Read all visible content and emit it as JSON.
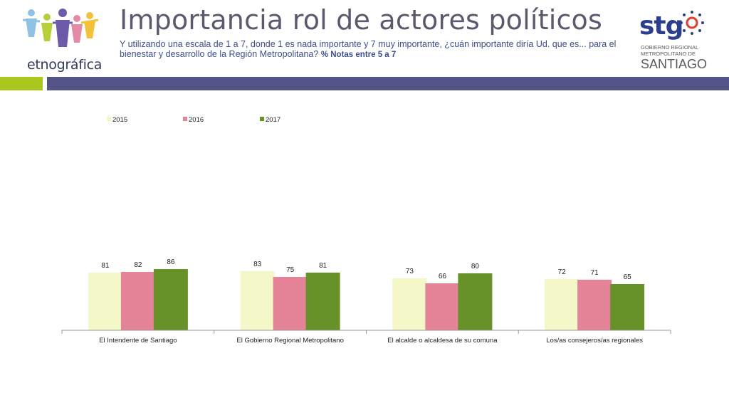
{
  "header": {
    "title": "Importancia rol de actores políticos",
    "subtitle": "Y utilizando una escala de 1 a 7, donde 1 es nada importante y 7 muy importante, ¿cuán importante diría Ud. que es... para el bienestar y desarrollo de la Región Metropolitana?",
    "note": "% Notas entre 5 a 7"
  },
  "logos": {
    "left_brand": "etnográfica",
    "right_brand": "stg",
    "right_line1": "GOBIERNO REGIONAL",
    "right_line2": "METROPOLITANO DE",
    "right_line3": "SANTIAGO"
  },
  "colors": {
    "s2015": "#f4f8c8",
    "s2016": "#e58399",
    "s2017": "#67922a",
    "band_green": "#a8c81e",
    "band_purple": "#545489"
  },
  "chart_data": {
    "type": "bar",
    "title": "",
    "xlabel": "",
    "ylabel": "",
    "ylim": [
      0,
      100
    ],
    "legend_position": "top-left",
    "categories": [
      "El Intendente de Santiago",
      "El Gobierno Regional Metropolitano",
      "El alcalde o alcaldesa de su comuna",
      "Los/as consejeros/as regionales"
    ],
    "series": [
      {
        "name": "2015",
        "values": [
          81,
          83,
          73,
          72
        ]
      },
      {
        "name": "2016",
        "values": [
          82,
          75,
          66,
          71
        ]
      },
      {
        "name": "2017",
        "values": [
          86,
          81,
          80,
          65
        ]
      }
    ]
  }
}
